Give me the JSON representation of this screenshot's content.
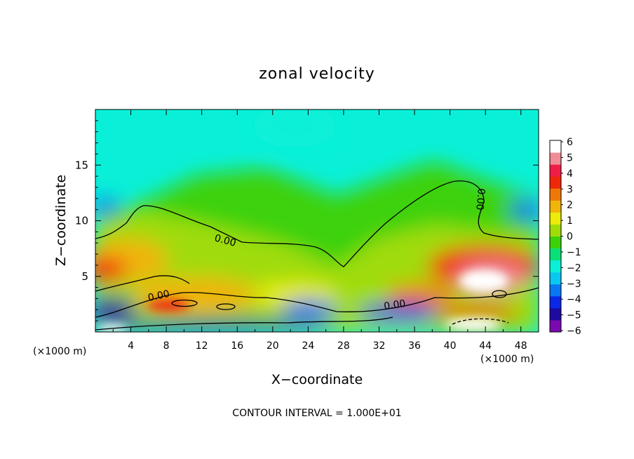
{
  "chart_data": {
    "type": "heatmap",
    "title": "zonal velocity",
    "xlabel": "X−coordinate",
    "ylabel": "Z−coordinate",
    "xlim": [
      0,
      50
    ],
    "ylim": [
      0,
      20
    ],
    "x_ticks": [
      4,
      8,
      12,
      16,
      20,
      24,
      28,
      32,
      36,
      40,
      44,
      48
    ],
    "x_tick_labels": [
      "4",
      "8",
      "12",
      "16",
      "20",
      "24",
      "28",
      "32",
      "36",
      "40",
      "44",
      "48"
    ],
    "y_ticks": [
      5,
      10,
      15
    ],
    "y_tick_labels": [
      "5",
      "10",
      "15"
    ],
    "x_unit_label_left": "(×1000 m)",
    "x_unit_label_right": "(×1000 m)",
    "colorbar": {
      "min": -6,
      "max": 6,
      "tick_labels": [
        "6",
        "5",
        "4",
        "3",
        "2",
        "1",
        "0",
        "−1",
        "−2",
        "−3",
        "−4",
        "−5",
        "−6"
      ],
      "colors": [
        "#7a0ab0",
        "#1e0aa0",
        "#0a28e6",
        "#0a78f0",
        "#0ac8f0",
        "#0af0d8",
        "#0ae07a",
        "#3cd20a",
        "#a0dc0a",
        "#ecec0a",
        "#f0b40a",
        "#f0780a",
        "#f0280a",
        "#f01e46",
        "#f08c96",
        "#ffffff"
      ]
    },
    "zero_contour_label": "0.00",
    "contour_interval_text": "CONTOUR INTERVAL = 1.000E+01",
    "features": [
      {
        "x": 3.5,
        "z": 11.5,
        "value": -2.6
      },
      {
        "x": 48,
        "z": 10.5,
        "value": -2.8
      },
      {
        "x": 23,
        "z": 18,
        "value": -1.8
      },
      {
        "x": 2,
        "z": 6.2,
        "value": 3.5
      },
      {
        "x": 2,
        "z": 7.2,
        "value": 2.2
      },
      {
        "x": 10,
        "z": 6.0,
        "value": 1.5
      },
      {
        "x": 43,
        "z": 5.2,
        "value": 5.8
      },
      {
        "x": 47,
        "z": 6.3,
        "value": 3.8
      },
      {
        "x": 40,
        "z": 3.0,
        "value": 2.5
      },
      {
        "x": 44,
        "z": 0.8,
        "value": 6.0
      },
      {
        "x": 2,
        "z": 1.7,
        "value": -5.0
      },
      {
        "x": 1.5,
        "z": 0.4,
        "value": 6.0
      },
      {
        "x": 8,
        "z": 2.6,
        "value": 3.0
      },
      {
        "x": 12,
        "z": 2.0,
        "value": 2.2
      },
      {
        "x": 19,
        "z": 0.7,
        "value": -4.5
      },
      {
        "x": 23,
        "z": 2.2,
        "value": -3.2
      },
      {
        "x": 35,
        "z": 1.8,
        "value": -4.0
      },
      {
        "x": 30,
        "z": 1.2,
        "value": -3.0
      },
      {
        "x": 28,
        "z": 6.5,
        "value": 0.3
      }
    ]
  }
}
